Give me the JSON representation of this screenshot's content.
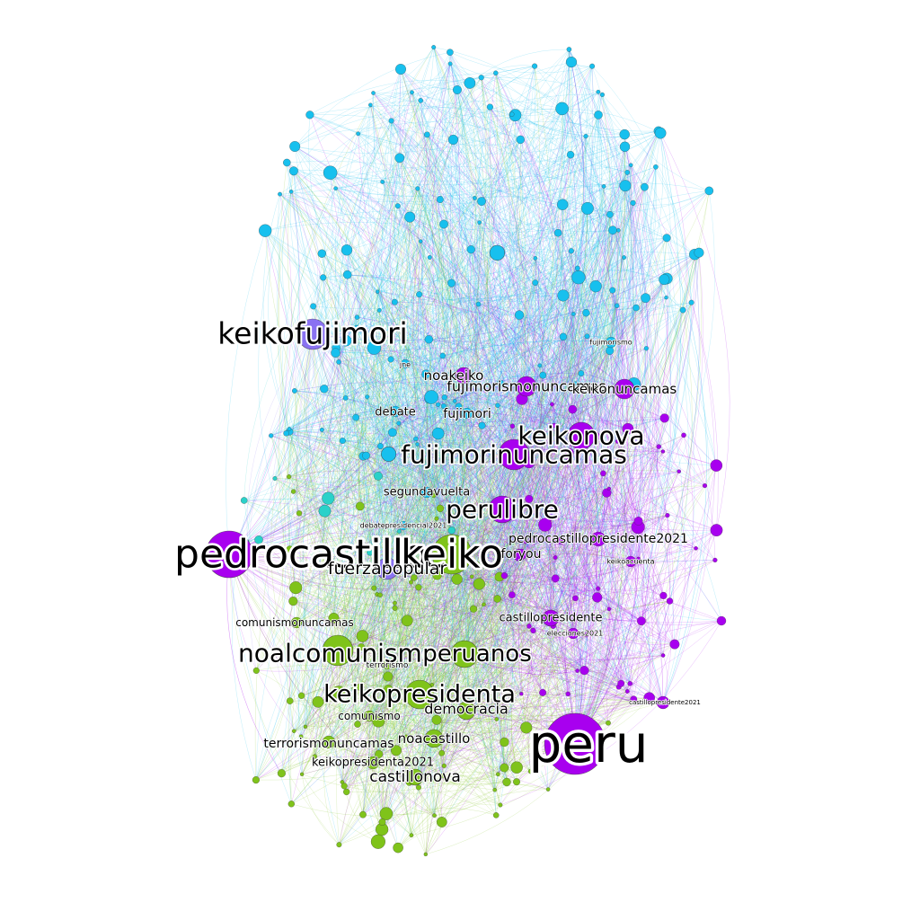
{
  "graph": {
    "colors": {
      "blue": "#17c0ee",
      "purple": "#a800ef",
      "green": "#7fc31a",
      "violet": "#8a72f2",
      "teal": "#2ad1c9",
      "background": "#ffffff"
    },
    "labels": [
      {
        "id": "pedrocastillo",
        "text": "pedrocastillo",
        "size": "xl",
        "color": "purple"
      },
      {
        "id": "keiko",
        "text": "keiko",
        "size": "xl",
        "color": "green"
      },
      {
        "id": "peru",
        "text": "peru",
        "size": "xxl",
        "color": "purple"
      },
      {
        "id": "keikofujimori",
        "text": "keikofujimori",
        "size": "l",
        "color": "violet"
      },
      {
        "id": "fujimorinuncamas",
        "text": "fujimorinuncamas",
        "size": "l",
        "color": "purple"
      },
      {
        "id": "keikonova",
        "text": "keikonova",
        "size": "l",
        "color": "purple"
      },
      {
        "id": "perulibre",
        "text": "perulibre",
        "size": "l",
        "color": "purple"
      },
      {
        "id": "noalcomunismo",
        "text": "noalcomunismo",
        "size": "l",
        "color": "green"
      },
      {
        "id": "peruanos",
        "text": "peruanos",
        "size": "l",
        "color": "green"
      },
      {
        "id": "keikopresidenta",
        "text": "keikopresidenta",
        "size": "l",
        "color": "green"
      },
      {
        "id": "fuerzapopular",
        "text": "fuerzapopular",
        "size": "m",
        "color": "violet"
      },
      {
        "id": "fujimorismonuncamas",
        "text": "fujimorismonuncamas",
        "size": "m",
        "color": "purple"
      },
      {
        "id": "keikonuncamas",
        "text": "keikonuncamas",
        "size": "m",
        "color": "purple"
      },
      {
        "id": "noakeiko",
        "text": "noakeiko",
        "size": "m",
        "color": "purple"
      },
      {
        "id": "fujimori",
        "text": "fujimori",
        "size": "s",
        "color": "blue"
      },
      {
        "id": "debate",
        "text": "debate",
        "size": "s",
        "color": "blue"
      },
      {
        "id": "segundavuelta",
        "text": "segundavuelta",
        "size": "s",
        "color": "blue"
      },
      {
        "id": "pedrocastillopresidente2021",
        "text": "pedrocastillopresidente2021",
        "size": "s",
        "color": "purple"
      },
      {
        "id": "foryou",
        "text": "foryou",
        "size": "s",
        "color": "purple"
      },
      {
        "id": "castillopresidente",
        "text": "castillopresidente",
        "size": "s",
        "color": "purple"
      },
      {
        "id": "comunismonuncamas",
        "text": "comunismonuncamas",
        "size": "s",
        "color": "green"
      },
      {
        "id": "democracia",
        "text": "democracia",
        "size": "m",
        "color": "green"
      },
      {
        "id": "noacastillo",
        "text": "noacastillo",
        "size": "m",
        "color": "green"
      },
      {
        "id": "terrorismonuncamas",
        "text": "terrorismonuncamas",
        "size": "s",
        "color": "green"
      },
      {
        "id": "keikopresidenta2021",
        "text": "keikopresidenta2021",
        "size": "s",
        "color": "green"
      },
      {
        "id": "castillonova",
        "text": "castillonova",
        "size": "m",
        "color": "green"
      },
      {
        "id": "comunismo",
        "text": "comunismo",
        "size": "s",
        "color": "green"
      },
      {
        "id": "terrorismo",
        "text": "terrorismo",
        "size": "xs",
        "color": "green"
      },
      {
        "id": "fujimorismo",
        "text": "fujimorismo",
        "size": "xs",
        "color": "blue"
      },
      {
        "id": "castillopresidente2021",
        "text": "castillopresidente2021",
        "size": "xs",
        "color": "purple"
      },
      {
        "id": "elecciones2021",
        "text": "elecciones2021",
        "size": "xs",
        "color": "purple"
      },
      {
        "id": "keikoaccuenta",
        "text": "keikoacuenta",
        "size": "xs",
        "color": "purple"
      },
      {
        "id": "debatepresidencial2021",
        "text": "debatepresidencial2021",
        "size": "xs",
        "color": "blue"
      },
      {
        "id": "jne",
        "text": "jne",
        "size": "xs",
        "color": "blue"
      }
    ]
  }
}
